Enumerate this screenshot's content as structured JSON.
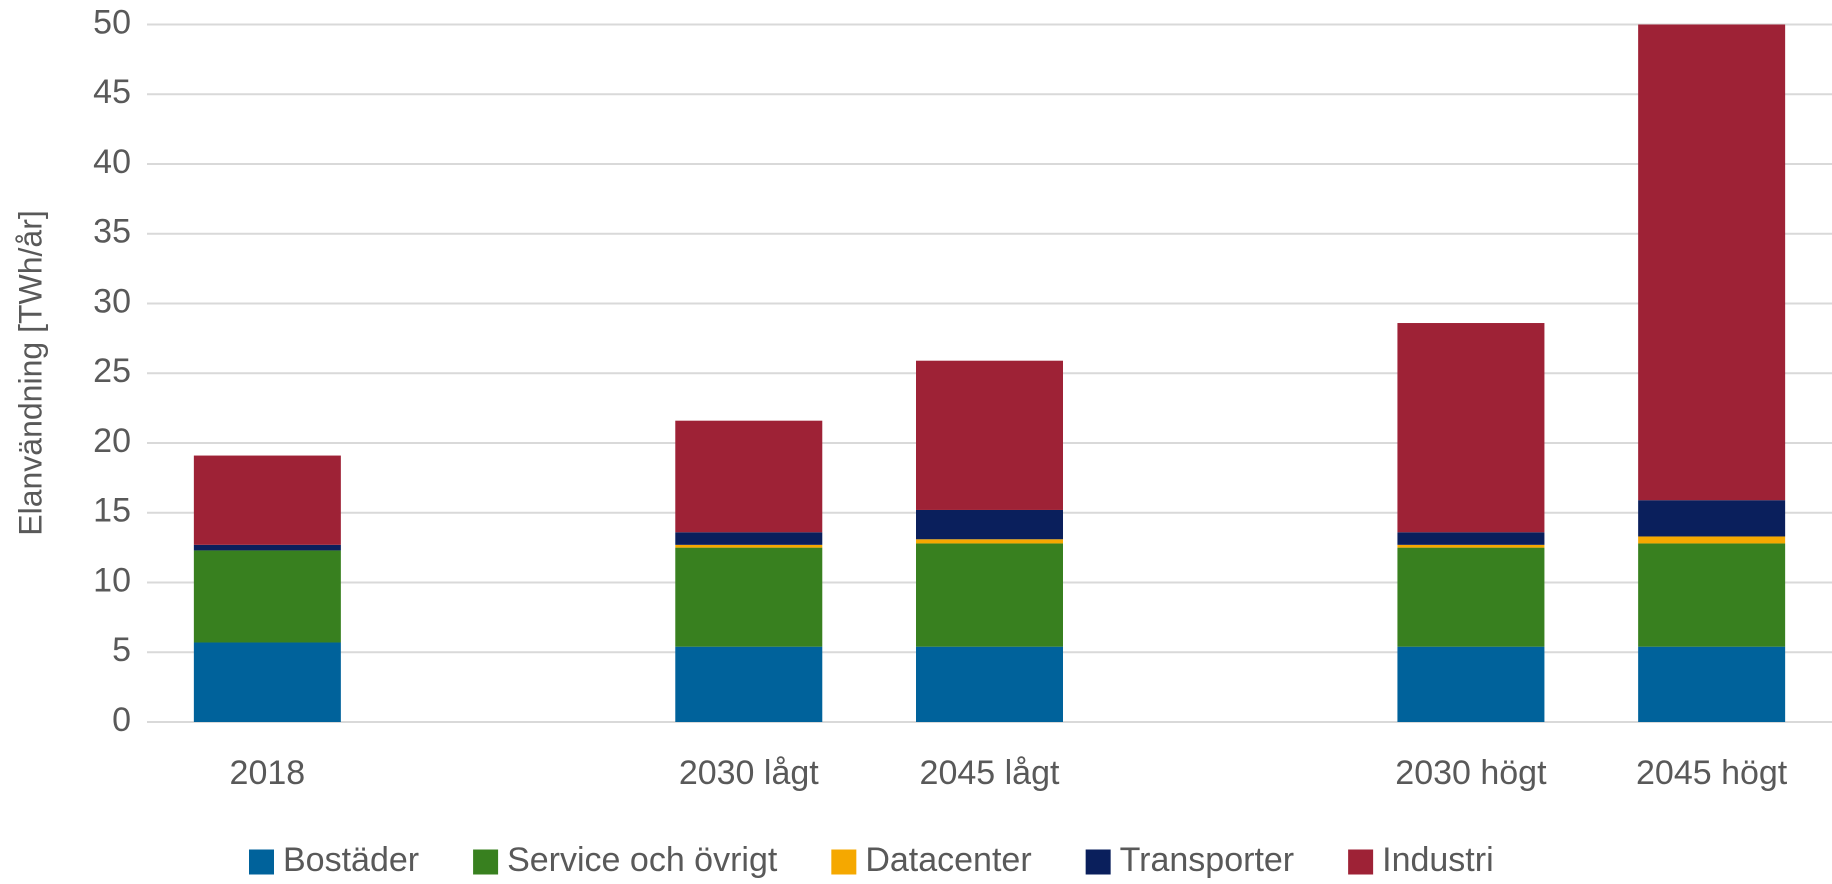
{
  "chart_data": {
    "type": "bar",
    "stacked": true,
    "y_label": "Elanvändning [TWh/år]",
    "categories": [
      "2018",
      null,
      "2030 lågt",
      "2045 lågt",
      null,
      "2030 högt",
      "2045 högt"
    ],
    "series": [
      {
        "name": "Bostäder",
        "color": "#00629b",
        "values": [
          5.7,
          null,
          5.4,
          5.4,
          null,
          5.4,
          5.4
        ]
      },
      {
        "name": "Service och övrigt",
        "color": "#38801f",
        "values": [
          6.6,
          null,
          7.1,
          7.4,
          null,
          7.1,
          7.4
        ]
      },
      {
        "name": "Datacenter",
        "color": "#f5a800",
        "values": [
          0,
          null,
          0.2,
          0.3,
          null,
          0.2,
          0.5
        ]
      },
      {
        "name": "Transporter",
        "color": "#0a1f5c",
        "values": [
          0.4,
          null,
          0.9,
          2.1,
          null,
          0.9,
          2.6
        ]
      },
      {
        "name": "Industri",
        "color": "#9e2236",
        "values": [
          6.4,
          null,
          8.0,
          10.7,
          null,
          15.0,
          34.1
        ]
      }
    ],
    "ylim": [
      0,
      50
    ],
    "yticks": [
      0,
      5,
      10,
      15,
      20,
      25,
      30,
      35,
      40,
      45,
      50
    ],
    "grid": true,
    "legend": "bottom"
  }
}
